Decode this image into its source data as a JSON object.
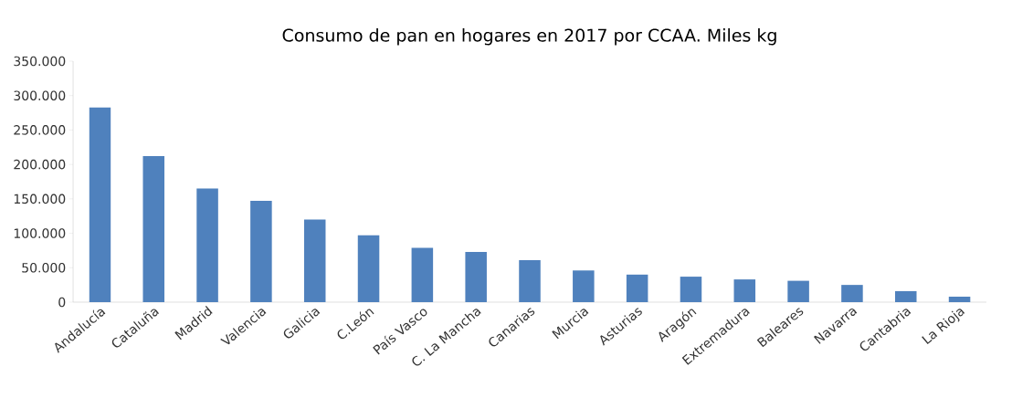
{
  "chart_data": {
    "type": "bar",
    "title": "Consumo de pan en hogares en 2017 por CCAA.  Miles kg",
    "categories": [
      "Andalucía",
      "Cataluña",
      "Madrid",
      "Valencia",
      "Galicia",
      "C.León",
      "País Vasco",
      "C. La Mancha",
      "Canarias",
      "Murcia",
      "Asturias",
      "Aragón",
      "Extremadura",
      "Baleares",
      "Navarra",
      "Cantabria",
      "La Rioja"
    ],
    "values": [
      283000,
      212000,
      165000,
      147000,
      120000,
      97000,
      79000,
      73000,
      61000,
      46000,
      40000,
      37000,
      33000,
      31000,
      25000,
      16000,
      8000
    ],
    "color": "#4f81bd",
    "ylim": [
      0,
      350000
    ],
    "yticks": [
      0,
      {
        "value": 50000,
        "label": "50.000"
      },
      {
        "value": 100000,
        "label": "100.000"
      },
      {
        "value": 150000,
        "label": "150.000"
      },
      {
        "value": 200000,
        "label": "200.000"
      },
      {
        "value": 250000,
        "label": "250.000"
      },
      {
        "value": 300000,
        "label": "300.000"
      },
      {
        "value": 350000,
        "label": "350.000"
      }
    ],
    "grid": false
  }
}
